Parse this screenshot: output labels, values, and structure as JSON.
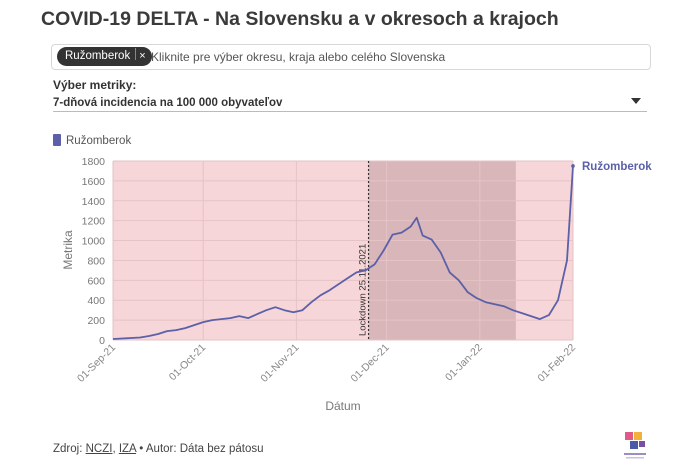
{
  "title": "COVID-19 DELTA - Na Slovensku a v okresoch a krajoch",
  "selector": {
    "chip_label": "Ružomberok",
    "chip_remove": "×",
    "placeholder": "Kliknite pre výber okresu, kraja alebo celého Slovenska"
  },
  "metric": {
    "label": "Výber metriky:",
    "value": "7-dňová incidencia na 100 000 obyvateľov"
  },
  "legend": {
    "label": "Ružomberok"
  },
  "colors": {
    "line": "#5b60a8",
    "band": "#f6d6d8",
    "lockdown_band": "#d9b6b9",
    "grid": "#e6c3c5"
  },
  "chart_data": {
    "type": "line",
    "xlabel": "Dátum",
    "ylabel": "Metrika",
    "ylim": [
      0,
      1800
    ],
    "yticks": [
      0,
      200,
      400,
      600,
      800,
      1000,
      1200,
      1400,
      1600,
      1800
    ],
    "xticks": [
      "01-Sep-21",
      "01-Oct-21",
      "01-Nov-21",
      "01-Dec-21",
      "01-Jan-22",
      "01-Feb-22"
    ],
    "xlim": [
      "2021-09-01",
      "2022-02-01"
    ],
    "grid": true,
    "bands": [
      {
        "from": "2021-09-01",
        "to": "2022-02-01",
        "color": "#f6d6d8"
      },
      {
        "from": "2021-11-25",
        "to": "2022-01-13",
        "color": "#d9b6b9"
      }
    ],
    "annotations": [
      {
        "type": "vline",
        "x": "2021-11-25",
        "text": "Lockdown 25.11.2021"
      }
    ],
    "series": [
      {
        "name": "Ružomberok",
        "end_label": "Ružomberok",
        "x": [
          "2021-09-01",
          "2021-09-04",
          "2021-09-07",
          "2021-09-10",
          "2021-09-13",
          "2021-09-16",
          "2021-09-19",
          "2021-09-22",
          "2021-09-25",
          "2021-09-28",
          "2021-10-01",
          "2021-10-04",
          "2021-10-07",
          "2021-10-10",
          "2021-10-13",
          "2021-10-16",
          "2021-10-19",
          "2021-10-22",
          "2021-10-25",
          "2021-10-28",
          "2021-10-31",
          "2021-11-03",
          "2021-11-06",
          "2021-11-09",
          "2021-11-12",
          "2021-11-15",
          "2021-11-18",
          "2021-11-21",
          "2021-11-24",
          "2021-11-27",
          "2021-11-30",
          "2021-12-03",
          "2021-12-06",
          "2021-12-09",
          "2021-12-11",
          "2021-12-13",
          "2021-12-16",
          "2021-12-19",
          "2021-12-22",
          "2021-12-25",
          "2021-12-28",
          "2021-12-31",
          "2022-01-03",
          "2022-01-06",
          "2022-01-09",
          "2022-01-12",
          "2022-01-15",
          "2022-01-18",
          "2022-01-21",
          "2022-01-24",
          "2022-01-27",
          "2022-01-30",
          "2022-02-01"
        ],
        "values": [
          10,
          15,
          20,
          25,
          40,
          60,
          90,
          100,
          120,
          150,
          180,
          200,
          210,
          220,
          240,
          220,
          260,
          300,
          330,
          300,
          280,
          300,
          380,
          450,
          500,
          560,
          620,
          680,
          700,
          760,
          900,
          1060,
          1080,
          1140,
          1230,
          1050,
          1010,
          880,
          680,
          600,
          480,
          420,
          380,
          360,
          340,
          300,
          270,
          240,
          210,
          250,
          400,
          800,
          1750
        ]
      }
    ]
  },
  "footer": {
    "prefix": "Zdroj: ",
    "source1": "NCZI",
    "comma": ", ",
    "source2": "IZA",
    "author": " • Autor: Dáta bez pátosu"
  },
  "logo": {
    "icon": "data-bez-patosu-logo",
    "colors": [
      "#e05a87",
      "#f2b13a",
      "#4a5aa8",
      "#7b4fa0"
    ]
  }
}
